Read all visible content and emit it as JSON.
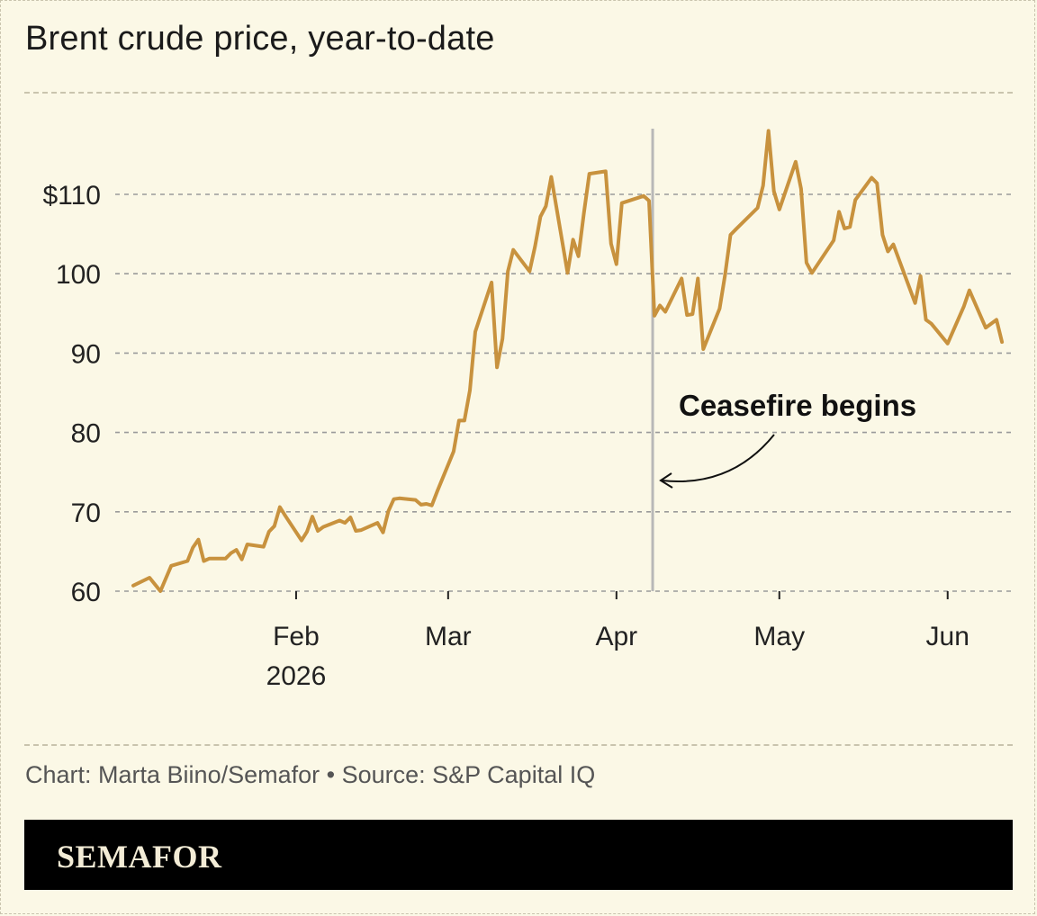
{
  "title": "Brent crude price, year-to-date",
  "credit": "Chart: Marta Biino/Semafor • Source: S&P Capital IQ",
  "logo": "SEMAFOR",
  "colors": {
    "background": "#fbf8e6",
    "line": "#c8923e",
    "marker": "#b8b8b8",
    "grid": "#9a9a9a"
  },
  "chart_data": {
    "type": "line",
    "title": "Brent crude price, year-to-date",
    "xlabel": "",
    "ylabel": "",
    "ylim": [
      60,
      118
    ],
    "xlim": [
      "2026-01-02",
      "2026-06-09"
    ],
    "grid": true,
    "y_ticks": [
      {
        "value": 110,
        "label": "$110"
      },
      {
        "value": 100,
        "label": "100"
      },
      {
        "value": 90,
        "label": "90"
      },
      {
        "value": 80,
        "label": "80"
      },
      {
        "value": 70,
        "label": "70"
      },
      {
        "value": 60,
        "label": "60"
      }
    ],
    "x_ticks": [
      {
        "date": "2026-02-01",
        "label": "Feb",
        "sublabel": "2026"
      },
      {
        "date": "2026-03-01",
        "label": "Mar",
        "sublabel": ""
      },
      {
        "date": "2026-04-01",
        "label": "Apr",
        "sublabel": ""
      },
      {
        "date": "2026-05-01",
        "label": "May",
        "sublabel": ""
      },
      {
        "date": "2026-06-01",
        "label": "Jun",
        "sublabel": ""
      }
    ],
    "annotations": [
      {
        "date": "2026-04-08",
        "text": "Ceasefire begins"
      }
    ],
    "series": [
      {
        "points": [
          [
            "2026-01-02",
            60.7
          ],
          [
            "2026-01-05",
            61.7
          ],
          [
            "2026-01-07",
            60.0
          ],
          [
            "2026-01-09",
            63.2
          ],
          [
            "2026-01-12",
            63.8
          ],
          [
            "2026-01-13",
            65.5
          ],
          [
            "2026-01-14",
            66.5
          ],
          [
            "2026-01-15",
            63.8
          ],
          [
            "2026-01-16",
            64.1
          ],
          [
            "2026-01-19",
            64.1
          ],
          [
            "2026-01-20",
            64.8
          ],
          [
            "2026-01-21",
            65.2
          ],
          [
            "2026-01-22",
            64.0
          ],
          [
            "2026-01-23",
            65.9
          ],
          [
            "2026-01-26",
            65.6
          ],
          [
            "2026-01-27",
            67.5
          ],
          [
            "2026-01-28",
            68.2
          ],
          [
            "2026-01-29",
            70.6
          ],
          [
            "2026-01-30",
            69.5
          ],
          [
            "2026-02-02",
            66.4
          ],
          [
            "2026-02-03",
            67.5
          ],
          [
            "2026-02-04",
            69.4
          ],
          [
            "2026-02-05",
            67.6
          ],
          [
            "2026-02-06",
            68.1
          ],
          [
            "2026-02-09",
            68.9
          ],
          [
            "2026-02-10",
            68.6
          ],
          [
            "2026-02-11",
            69.3
          ],
          [
            "2026-02-12",
            67.6
          ],
          [
            "2026-02-13",
            67.7
          ],
          [
            "2026-02-16",
            68.6
          ],
          [
            "2026-02-17",
            67.4
          ],
          [
            "2026-02-18",
            70.1
          ],
          [
            "2026-02-19",
            71.6
          ],
          [
            "2026-02-20",
            71.7
          ],
          [
            "2026-02-23",
            71.5
          ],
          [
            "2026-02-24",
            70.9
          ],
          [
            "2026-02-25",
            71.0
          ],
          [
            "2026-02-26",
            70.8
          ],
          [
            "2026-02-27",
            72.6
          ],
          [
            "2026-03-02",
            77.6
          ],
          [
            "2026-03-03",
            81.5
          ],
          [
            "2026-03-04",
            81.5
          ],
          [
            "2026-03-05",
            85.3
          ],
          [
            "2026-03-06",
            92.7
          ],
          [
            "2026-03-09",
            98.9
          ],
          [
            "2026-03-10",
            88.2
          ],
          [
            "2026-03-11",
            91.8
          ],
          [
            "2026-03-12",
            100.3
          ],
          [
            "2026-03-13",
            103.0
          ],
          [
            "2026-03-16",
            100.3
          ],
          [
            "2026-03-17",
            103.4
          ],
          [
            "2026-03-18",
            107.2
          ],
          [
            "2026-03-19",
            108.5
          ],
          [
            "2026-03-20",
            112.2
          ],
          [
            "2026-03-23",
            100.1
          ],
          [
            "2026-03-24",
            104.3
          ],
          [
            "2026-03-25",
            102.2
          ],
          [
            "2026-03-26",
            107.6
          ],
          [
            "2026-03-27",
            112.6
          ],
          [
            "2026-03-30",
            112.9
          ],
          [
            "2026-03-31",
            103.8
          ],
          [
            "2026-04-01",
            101.2
          ],
          [
            "2026-04-02",
            108.9
          ],
          [
            "2026-04-06",
            109.8
          ],
          [
            "2026-04-07",
            109.2
          ],
          [
            "2026-04-08",
            94.7
          ],
          [
            "2026-04-09",
            96.0
          ],
          [
            "2026-04-10",
            95.2
          ],
          [
            "2026-04-13",
            99.4
          ],
          [
            "2026-04-14",
            94.8
          ],
          [
            "2026-04-15",
            94.9
          ],
          [
            "2026-04-16",
            99.4
          ],
          [
            "2026-04-17",
            90.5
          ],
          [
            "2026-04-20",
            95.6
          ],
          [
            "2026-04-21",
            99.8
          ],
          [
            "2026-04-22",
            104.9
          ],
          [
            "2026-04-23",
            105.6
          ],
          [
            "2026-04-27",
            108.3
          ],
          [
            "2026-04-28",
            111.1
          ],
          [
            "2026-04-29",
            118.0
          ],
          [
            "2026-04-30",
            110.4
          ],
          [
            "2026-05-01",
            108.1
          ],
          [
            "2026-05-04",
            114.1
          ],
          [
            "2026-05-05",
            110.7
          ],
          [
            "2026-05-06",
            101.4
          ],
          [
            "2026-05-07",
            100.1
          ],
          [
            "2026-05-11",
            104.2
          ],
          [
            "2026-05-12",
            107.8
          ],
          [
            "2026-05-13",
            105.7
          ],
          [
            "2026-05-14",
            105.9
          ],
          [
            "2026-05-15",
            109.3
          ],
          [
            "2026-05-18",
            112.1
          ],
          [
            "2026-05-19",
            111.4
          ],
          [
            "2026-05-20",
            104.9
          ],
          [
            "2026-05-21",
            102.8
          ],
          [
            "2026-05-22",
            103.7
          ],
          [
            "2026-05-26",
            96.3
          ],
          [
            "2026-05-27",
            99.7
          ],
          [
            "2026-05-28",
            94.2
          ],
          [
            "2026-05-29",
            93.7
          ],
          [
            "2026-06-01",
            91.2
          ],
          [
            "2026-06-04",
            95.9
          ],
          [
            "2026-06-05",
            97.9
          ],
          [
            "2026-06-08",
            93.2
          ],
          [
            "2026-06-10",
            94.2
          ],
          [
            "2026-06-11",
            91.4
          ]
        ]
      }
    ]
  }
}
